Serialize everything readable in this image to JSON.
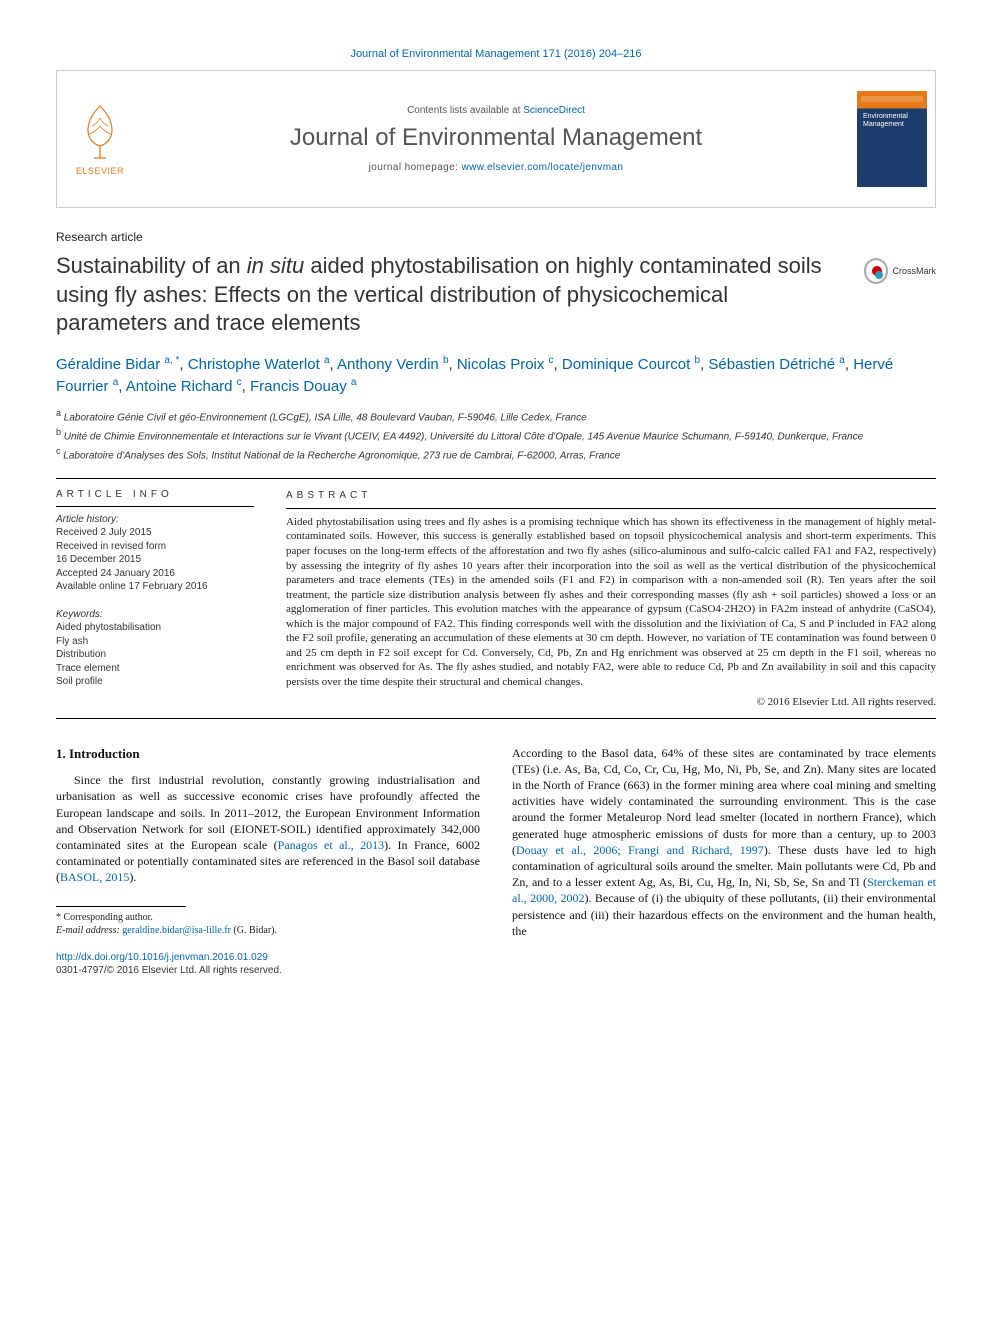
{
  "citation": {
    "journal": "Journal of Environmental Management",
    "volpages": "171 (2016) 204–216"
  },
  "header": {
    "publisher": "ELSEVIER",
    "contents_prefix": "Contents lists available at ",
    "contents_link": "ScienceDirect",
    "journal_name": "Journal of Environmental Management",
    "homepage_prefix": "journal homepage: ",
    "homepage_url": "www.elsevier.com/locate/jenvman"
  },
  "crossmark_label": "CrossMark",
  "article_type": "Research article",
  "title_pre": "Sustainability of an ",
  "title_em": "in situ",
  "title_post": " aided phytostabilisation on highly contaminated soils using fly ashes: Effects on the vertical distribution of physicochemical parameters and trace elements",
  "authors": [
    {
      "name": "Géraldine Bidar",
      "aff": "a, *"
    },
    {
      "name": "Christophe Waterlot",
      "aff": "a"
    },
    {
      "name": "Anthony Verdin",
      "aff": "b"
    },
    {
      "name": "Nicolas Proix",
      "aff": "c"
    },
    {
      "name": "Dominique Courcot",
      "aff": "b"
    },
    {
      "name": "Sébastien Détriché",
      "aff": "a"
    },
    {
      "name": "Hervé Fourrier",
      "aff": "a"
    },
    {
      "name": "Antoine Richard",
      "aff": "c"
    },
    {
      "name": "Francis Douay",
      "aff": "a"
    }
  ],
  "affiliations": [
    {
      "sup": "a",
      "text": "Laboratoire Génie Civil et géo-Environnement (LGCgE), ISA Lille, 48 Boulevard Vauban, F-59046, Lille Cedex, France"
    },
    {
      "sup": "b",
      "text": "Unité de Chimie Environnementale et Interactions sur le Vivant (UCEIV, EA 4492), Université du Littoral Côte d'Opale, 145 Avenue Maurice Schumann, F-59140, Dunkerque, France"
    },
    {
      "sup": "c",
      "text": "Laboratoire d'Analyses des Sols, Institut National de la Recherche Agronomique, 273 rue de Cambrai, F-62000, Arras, France"
    }
  ],
  "info": {
    "heading": "ARTICLE INFO",
    "history_label": "Article history:",
    "history": [
      "Received 2 July 2015",
      "Received in revised form",
      "16 December 2015",
      "Accepted 24 January 2016",
      "Available online 17 February 2016"
    ],
    "keywords_label": "Keywords:",
    "keywords": [
      "Aided phytostabilisation",
      "Fly ash",
      "Distribution",
      "Trace element",
      "Soil profile"
    ]
  },
  "abstract": {
    "heading": "ABSTRACT",
    "text": "Aided phytostabilisation using trees and fly ashes is a promising technique which has shown its effectiveness in the management of highly metal-contaminated soils. However, this success is generally established based on topsoil physicochemical analysis and short-term experiments. This paper focuses on the long-term effects of the afforestation and two fly ashes (silico-aluminous and sulfo-calcic called FA1 and FA2, respectively) by assessing the integrity of fly ashes 10 years after their incorporation into the soil as well as the vertical distribution of the physicochemical parameters and trace elements (TEs) in the amended soils (F1 and F2) in comparison with a non-amended soil (R). Ten years after the soil treatment, the particle size distribution analysis between fly ashes and their corresponding masses (fly ash + soil particles) showed a loss or an agglomeration of finer particles. This evolution matches with the appearance of gypsum (CaSO4·2H2O) in FA2m instead of anhydrite (CaSO4), which is the major compound of FA2. This finding corresponds well with the dissolution and the lixiviation of Ca, S and P included in FA2 along the F2 soil profile, generating an accumulation of these elements at 30 cm depth. However, no variation of TE contamination was found between 0 and 25 cm depth in F2 soil except for Cd. Conversely, Cd, Pb, Zn and Hg enrichment was observed at 25 cm depth in the F1 soil, whereas no enrichment was observed for As. The fly ashes studied, and notably FA2, were able to reduce Cd, Pb and Zn availability in soil and this capacity persists over the time despite their structural and chemical changes.",
    "copyright": "© 2016 Elsevier Ltd. All rights reserved."
  },
  "body": {
    "section_heading": "1.  Introduction",
    "col1_pre": "Since the first industrial revolution, constantly growing industrialisation and urbanisation as well as successive economic crises have profoundly affected the European landscape and soils. In 2011–2012, the European Environment Information and Observation Network for soil (EIONET-SOIL) identified approximately 342,000 contaminated sites at the European scale (",
    "col1_link1": "Panagos et al., 2013",
    "col1_mid1": "). In France, 6002 contaminated or potentially contaminated sites are referenced in the Basol soil database (",
    "col1_link2": "BASOL, 2015",
    "col1_post": ").",
    "col2_pre": "According to the Basol data, 64% of these sites are contaminated by trace elements (TEs) (i.e. As, Ba, Cd, Co, Cr, Cu, Hg, Mo, Ni, Pb, Se, and Zn). Many sites are located in the North of France (663) in the former mining area where coal mining and smelting activities have widely contaminated the surrounding environment. This is the case around the former Metaleurop Nord lead smelter (located in northern France), which generated huge atmospheric emissions of dusts for more than a century, up to 2003 (",
    "col2_link1": "Douay et al., 2006; Frangi and Richard, 1997",
    "col2_mid1": "). These dusts have led to high contamination of agricultural soils around the smelter. Main pollutants were Cd, Pb and Zn, and to a lesser extent Ag, As, Bi, Cu, Hg, In, Ni, Sb, Se, Sn and Tl (",
    "col2_link2": "Sterckeman et al., 2000, 2002",
    "col2_post": "). Because of (i) the ubiquity of these pollutants, (ii) their environmental persistence and (iii) their hazardous effects on the environment and the human health, the"
  },
  "footnotes": {
    "corresponding": "* Corresponding author.",
    "email_label": "E-mail address:",
    "email": "geraldine.bidar@isa-lille.fr",
    "email_name": "(G. Bidar)."
  },
  "footer": {
    "doi": "http://dx.doi.org/10.1016/j.jenvman.2016.01.029",
    "issn_line": "0301-4797/© 2016 Elsevier Ltd. All rights reserved."
  },
  "colors": {
    "link": "#0066aa",
    "elsevier_orange": "#e67817",
    "cover_navy": "#1c3d6b",
    "text": "#111111",
    "muted": "#555555"
  }
}
